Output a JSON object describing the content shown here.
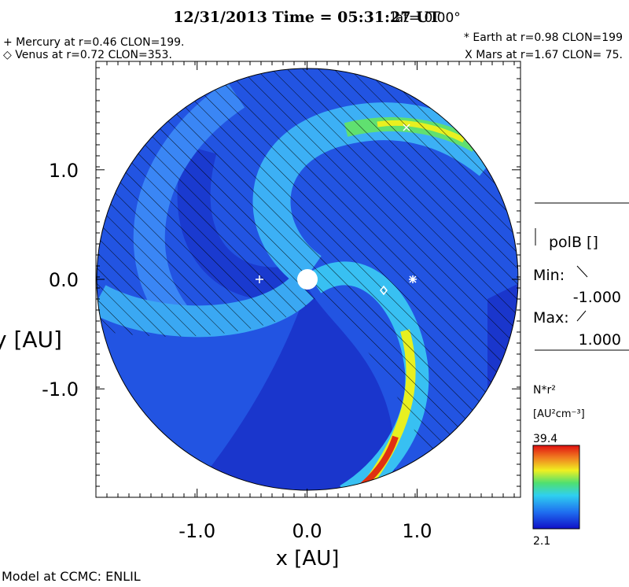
{
  "title": "12/31/2013 Time = 05:31:27 UT",
  "latitude": "lat= 0.00°",
  "planets": [
    "+ Mercury at r=0.46 CLON=199.",
    "◇ Venus at r=0.72 CLON=353.",
    "* Earth at  r=0.98 CLON=199",
    "X Mars at r=1.67 CLON= 75."
  ],
  "plot": {
    "x_label": "x [AU]",
    "y_label": "y [AU]",
    "xlim": [
      -1.92,
      1.94
    ],
    "ylim": [
      -1.99,
      1.99
    ],
    "xticks": [
      {
        "value": -1,
        "label": "-1.0"
      },
      {
        "value": 0,
        "label": "0.0"
      },
      {
        "value": 1,
        "label": "1.0"
      }
    ],
    "yticks": [
      {
        "value": -1,
        "label": "-1.0"
      },
      {
        "value": 0,
        "label": "0.0"
      },
      {
        "value": 1,
        "label": "1.0"
      }
    ]
  },
  "legend": {
    "field": "polB []",
    "min_label": "Min:",
    "min": "-1.000",
    "max_label": "Max:",
    "max": "1.000"
  },
  "colorbar": {
    "label": "N*r²",
    "units": "[AU²cm⁻³]",
    "max": 39.4,
    "min": 2.1
  },
  "footer": "Model at CCMC: ENLIL"
}
